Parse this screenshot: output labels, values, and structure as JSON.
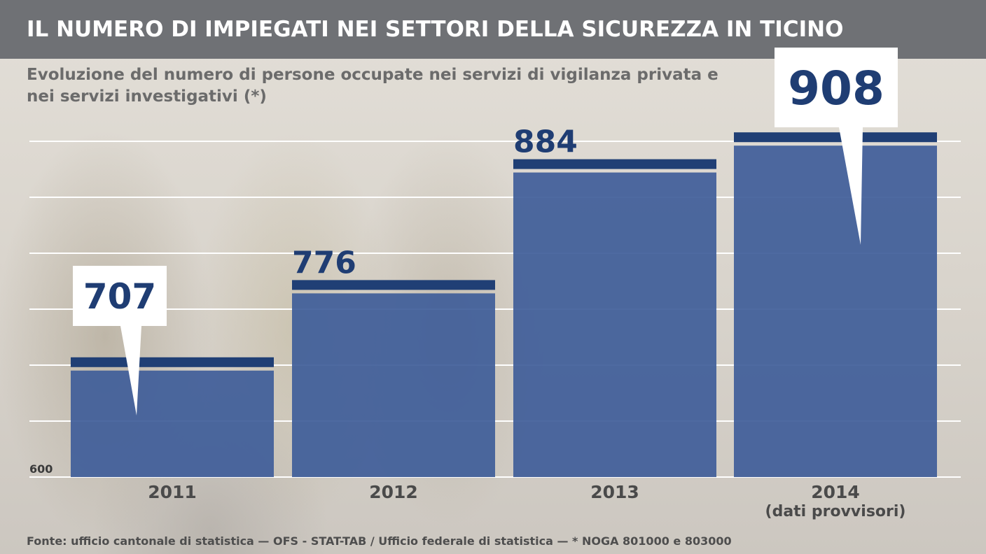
{
  "header": {
    "title": "IL NUMERO DI IMPIEGATI NEI SETTORI DELLA SICUREZZA IN TICINO",
    "subtitle": "Evoluzione del numero di persone occupate nei servizi di vigilanza privata e nei servizi investigativi (*)"
  },
  "footer": {
    "source": "Fonte: ufficio cantonale di statistica — OFS - STAT-TAB / Ufficio federale di statistica — * NOGA 801000 e 803000"
  },
  "colors": {
    "header_bg": "#6f7175",
    "bar_fill": "#3f5d99",
    "bar_cap": "#203f75",
    "value_text": "#1f3d73",
    "gridline": "#ffffff"
  },
  "chart_data": {
    "type": "bar",
    "title": "IL NUMERO DI IMPIEGATI NEI SETTORI DELLA SICUREZZA IN TICINO",
    "subtitle": "Evoluzione del numero di persone occupate nei servizi di vigilanza privata e nei servizi investigativi (*)",
    "categories": [
      "2011",
      "2012",
      "2013",
      "2014"
    ],
    "category_notes": [
      "",
      "",
      "",
      "(dati provvisori)"
    ],
    "values": [
      707,
      776,
      884,
      908
    ],
    "value_labels": [
      "707",
      "776",
      "884",
      "908"
    ],
    "highlighted": [
      "2011",
      "2014"
    ],
    "ylim": [
      600,
      940
    ],
    "ytick_labels": [
      "600"
    ],
    "grid": true,
    "xlabel": "",
    "ylabel": ""
  }
}
